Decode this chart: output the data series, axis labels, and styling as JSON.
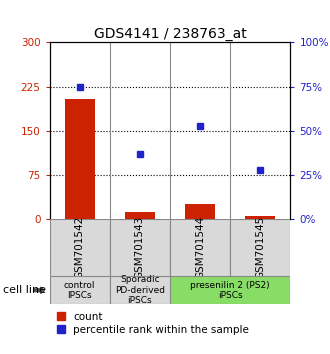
{
  "title": "GDS4141 / 238763_at",
  "samples": [
    "GSM701542",
    "GSM701543",
    "GSM701544",
    "GSM701545"
  ],
  "counts": [
    205,
    13,
    27,
    6
  ],
  "percentiles": [
    75,
    37,
    53,
    28
  ],
  "ylim_left": [
    0,
    300
  ],
  "ylim_right": [
    0,
    100
  ],
  "yticks_left": [
    0,
    75,
    150,
    225,
    300
  ],
  "yticks_right": [
    0,
    25,
    50,
    75,
    100
  ],
  "bar_color": "#cc2200",
  "dot_color": "#2222cc",
  "groups": [
    {
      "label": "control\nIPSCs",
      "color": "#d9d9d9",
      "indices": [
        0
      ]
    },
    {
      "label": "Sporadic\nPD-derived\niPSCs",
      "color": "#d9d9d9",
      "indices": [
        1
      ]
    },
    {
      "label": "presenilin 2 (PS2)\niPSCs",
      "color": "#88dd66",
      "indices": [
        2,
        3
      ]
    }
  ],
  "cell_line_label": "cell line",
  "legend_count_label": "count",
  "legend_percentile_label": "percentile rank within the sample",
  "title_fontsize": 10,
  "tick_fontsize": 7.5,
  "group_fontsize": 6.5,
  "legend_fontsize": 7.5
}
